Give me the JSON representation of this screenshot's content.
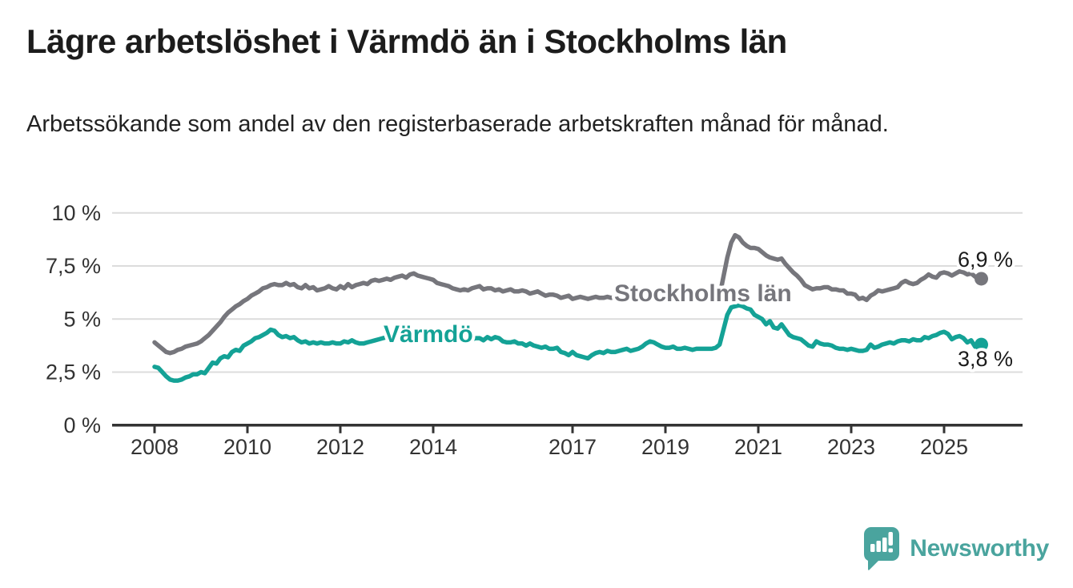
{
  "header": {
    "title": "Lägre arbetslöshet i Värmdö än i Stockholms län",
    "subtitle": "Arbetssökande som andel av den registerbaserade arbetskraften månad för månad."
  },
  "footer": {
    "brand": "Newsworthy",
    "brand_color": "#4aa49e",
    "logo_icon": "bar-chart-speech-bubble-icon"
  },
  "chart_data": {
    "type": "line",
    "frequency": "monthly",
    "x_start": "2008-01",
    "x_end": "2025-10",
    "unit": "%",
    "ylim": [
      0,
      10
    ],
    "grid": true,
    "y_ticks": [
      0,
      2.5,
      5,
      7.5,
      10
    ],
    "y_tick_labels": [
      "0 %",
      "2,5 %",
      "5 %",
      "7,5 %",
      "10 %"
    ],
    "x_ticks": [
      2008,
      2010,
      2012,
      2014,
      2017,
      2019,
      2021,
      2023,
      2025
    ],
    "x_tick_labels": [
      "2008",
      "2010",
      "2012",
      "2014",
      "2017",
      "2019",
      "2021",
      "2023",
      "2025"
    ],
    "legend_position": "inline-labels-on-lines",
    "series": [
      {
        "name": "Stockholms län",
        "color": "#76767c",
        "end_label": "6,9 %",
        "end_value": 6.9,
        "values": [
          3.9,
          3.75,
          3.6,
          3.45,
          3.4,
          3.45,
          3.55,
          3.6,
          3.7,
          3.75,
          3.8,
          3.85,
          3.95,
          4.1,
          4.25,
          4.45,
          4.65,
          4.85,
          5.1,
          5.3,
          5.45,
          5.6,
          5.7,
          5.85,
          5.95,
          6.1,
          6.2,
          6.3,
          6.45,
          6.5,
          6.6,
          6.65,
          6.6,
          6.6,
          6.7,
          6.6,
          6.65,
          6.5,
          6.45,
          6.6,
          6.45,
          6.5,
          6.35,
          6.4,
          6.45,
          6.55,
          6.45,
          6.4,
          6.55,
          6.45,
          6.65,
          6.5,
          6.6,
          6.65,
          6.7,
          6.65,
          6.8,
          6.85,
          6.8,
          6.85,
          6.9,
          6.85,
          6.95,
          7.0,
          7.05,
          6.95,
          7.1,
          7.15,
          7.05,
          7.0,
          6.95,
          6.9,
          6.85,
          6.7,
          6.65,
          6.6,
          6.55,
          6.45,
          6.4,
          6.35,
          6.4,
          6.35,
          6.45,
          6.5,
          6.55,
          6.4,
          6.45,
          6.45,
          6.35,
          6.4,
          6.3,
          6.35,
          6.4,
          6.3,
          6.3,
          6.35,
          6.3,
          6.2,
          6.25,
          6.3,
          6.2,
          6.1,
          6.15,
          6.15,
          6.1,
          6.0,
          6.05,
          6.1,
          5.95,
          6.0,
          6.05,
          6.0,
          5.95,
          6.0,
          6.05,
          6.0,
          6.0,
          6.05,
          6.0,
          6.05,
          6.0,
          5.95,
          6.0,
          6.05,
          6.0,
          5.95,
          6.0,
          6.05,
          6.0,
          5.95,
          6.0,
          6.0,
          6.05,
          6.0,
          5.95,
          6.0,
          5.9,
          5.95,
          5.9,
          5.85,
          5.95,
          6.05,
          6.1,
          6.05,
          5.95,
          5.85,
          6.1,
          7.0,
          7.9,
          8.6,
          8.95,
          8.85,
          8.6,
          8.45,
          8.35,
          8.35,
          8.3,
          8.15,
          8.0,
          7.9,
          7.85,
          7.8,
          7.85,
          7.6,
          7.4,
          7.2,
          7.05,
          6.85,
          6.6,
          6.5,
          6.4,
          6.45,
          6.45,
          6.5,
          6.5,
          6.4,
          6.4,
          6.35,
          6.35,
          6.2,
          6.2,
          6.15,
          5.95,
          6.0,
          5.9,
          6.1,
          6.2,
          6.35,
          6.3,
          6.35,
          6.4,
          6.45,
          6.5,
          6.7,
          6.8,
          6.7,
          6.65,
          6.7,
          6.85,
          6.95,
          7.1,
          7.0,
          6.95,
          7.15,
          7.2,
          7.15,
          7.05,
          7.15,
          7.25,
          7.2,
          7.1,
          7.15,
          7.0,
          6.9
        ]
      },
      {
        "name": "Värmdö",
        "color": "#14a296",
        "end_label": "3,8 %",
        "end_value": 3.8,
        "values": [
          2.75,
          2.7,
          2.5,
          2.3,
          2.15,
          2.1,
          2.1,
          2.15,
          2.25,
          2.3,
          2.4,
          2.4,
          2.5,
          2.45,
          2.7,
          2.95,
          2.9,
          3.15,
          3.25,
          3.2,
          3.45,
          3.55,
          3.5,
          3.75,
          3.85,
          3.95,
          4.1,
          4.15,
          4.25,
          4.35,
          4.5,
          4.45,
          4.25,
          4.15,
          4.2,
          4.1,
          4.15,
          4.0,
          3.9,
          3.95,
          3.85,
          3.9,
          3.85,
          3.9,
          3.85,
          3.85,
          3.9,
          3.85,
          3.85,
          3.95,
          3.9,
          4.0,
          3.9,
          3.85,
          3.85,
          3.9,
          3.95,
          4.0,
          4.05,
          4.1,
          4.15,
          4.15,
          4.2,
          4.25,
          4.25,
          4.3,
          4.3,
          4.25,
          4.25,
          4.2,
          4.2,
          4.15,
          4.15,
          4.1,
          4.1,
          4.05,
          4.1,
          4.05,
          4.05,
          4.0,
          4.1,
          4.05,
          4.05,
          4.1,
          4.1,
          4.0,
          4.15,
          4.05,
          4.15,
          4.1,
          3.95,
          3.9,
          3.9,
          3.95,
          3.85,
          3.85,
          3.75,
          3.85,
          3.75,
          3.7,
          3.65,
          3.7,
          3.6,
          3.6,
          3.65,
          3.45,
          3.4,
          3.3,
          3.45,
          3.3,
          3.25,
          3.2,
          3.15,
          3.3,
          3.4,
          3.45,
          3.4,
          3.5,
          3.45,
          3.45,
          3.5,
          3.55,
          3.6,
          3.5,
          3.55,
          3.6,
          3.7,
          3.85,
          3.95,
          3.9,
          3.8,
          3.7,
          3.65,
          3.65,
          3.7,
          3.6,
          3.6,
          3.65,
          3.6,
          3.55,
          3.6,
          3.6,
          3.6,
          3.6,
          3.6,
          3.65,
          3.8,
          4.5,
          5.2,
          5.55,
          5.6,
          5.65,
          5.6,
          5.5,
          5.45,
          5.2,
          5.1,
          5.0,
          4.75,
          4.9,
          4.6,
          4.55,
          4.75,
          4.5,
          4.25,
          4.15,
          4.1,
          4.05,
          3.9,
          3.75,
          3.7,
          3.95,
          3.85,
          3.8,
          3.8,
          3.75,
          3.65,
          3.6,
          3.6,
          3.55,
          3.6,
          3.55,
          3.5,
          3.5,
          3.55,
          3.8,
          3.65,
          3.7,
          3.8,
          3.85,
          3.9,
          3.85,
          3.95,
          4.0,
          4.0,
          3.95,
          4.05,
          4.0,
          4.0,
          4.15,
          4.1,
          4.2,
          4.25,
          4.35,
          4.4,
          4.3,
          4.05,
          4.15,
          4.2,
          4.1,
          3.9,
          4.0,
          3.7,
          3.8
        ]
      }
    ]
  }
}
